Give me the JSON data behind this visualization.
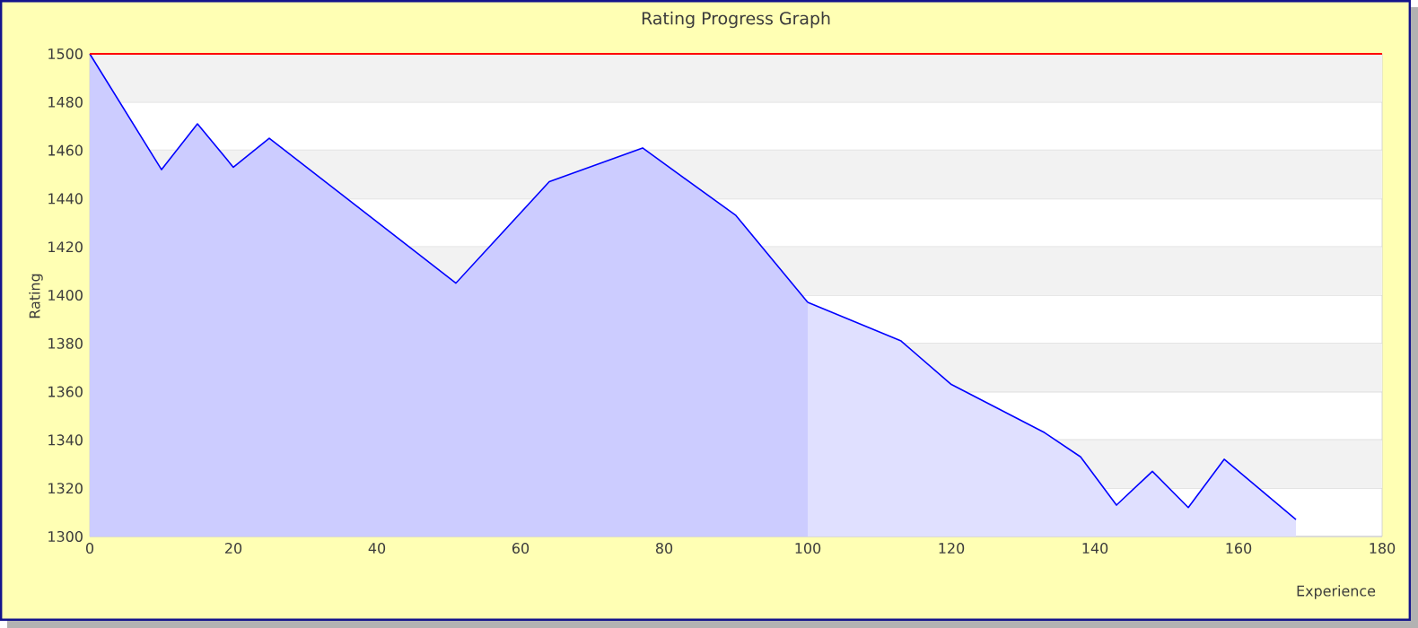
{
  "chart_data": {
    "type": "area",
    "title": "Rating Progress Graph",
    "xlabel": "Experience",
    "ylabel": "Rating",
    "series": [
      {
        "color": "#0000ff",
        "x": [
          0,
          10,
          15,
          20,
          25,
          51,
          64,
          77,
          90,
          100
        ],
        "values": [
          1500,
          1452,
          1471,
          1453,
          1465,
          1405,
          1447,
          1461,
          1433,
          1397
        ]
      },
      {
        "color": "#0000ff",
        "x": [
          100,
          113,
          120,
          133,
          138,
          143,
          148,
          153,
          158,
          168
        ],
        "values": [
          1397,
          1381,
          1363,
          1343,
          1333,
          1313,
          1327,
          1312,
          1332,
          1307
        ]
      }
    ],
    "xlim": [
      0,
      180
    ],
    "xticks": [
      0,
      20,
      40,
      60,
      80,
      100,
      120,
      140,
      160,
      180
    ],
    "ylim": [
      1300,
      1500
    ],
    "yticks": [
      1300,
      1320,
      1340,
      1360,
      1380,
      1400,
      1420,
      1440,
      1460,
      1480,
      1500
    ],
    "ref_lines": [
      {
        "axis": "y",
        "value": 1500,
        "color": "#ff0000"
      }
    ],
    "grid": "y",
    "marker": "none",
    "line_style": "solid"
  }
}
